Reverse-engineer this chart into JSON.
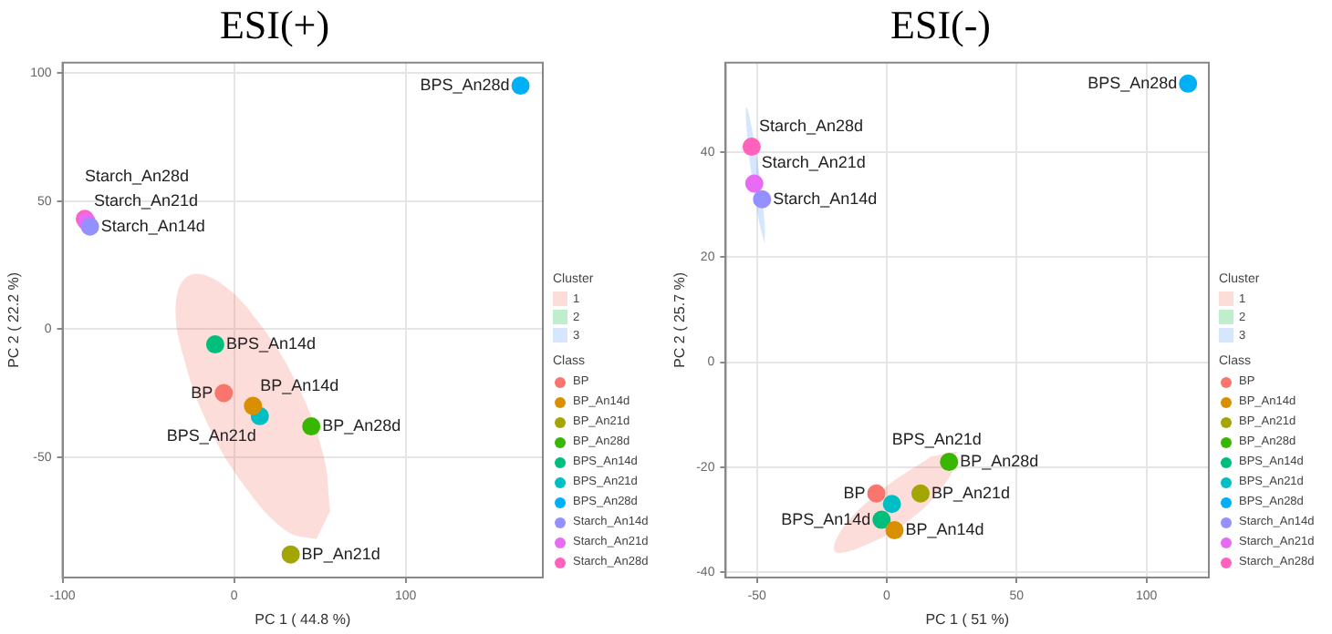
{
  "chart_data": [
    {
      "type": "scatter",
      "title": "ESI(+)",
      "xlabel": "PC 1 ( 44.8 %)",
      "ylabel": "PC 2 ( 22.2 %)",
      "legend_title": "Class",
      "annotations": [
        "Cluster"
      ],
      "xlim": [
        -100,
        180
      ],
      "ylim": [
        -97,
        104
      ],
      "xticks": [
        -100,
        0,
        100
      ],
      "yticks": [
        -50,
        0,
        50,
        100
      ],
      "grid": true,
      "legend": "right",
      "marker": "circle",
      "series": [
        {
          "name": "1",
          "type": "area",
          "marker": "none",
          "color": "#f8766d",
          "x": [
            48,
            31,
            8,
            -14,
            -29,
            -34,
            -26,
            -8,
            15,
            37,
            52,
            56
          ],
          "values": [
            -82,
            -79,
            -63,
            -39,
            -12,
            10,
            21,
            18,
            2,
            -22,
            -49,
            -71
          ]
        },
        {
          "name": "2",
          "type": "area",
          "marker": "none",
          "color": "#00ba38"
        },
        {
          "name": "3",
          "type": "area",
          "marker": "none",
          "color": "#619cff"
        },
        {
          "name": "BP",
          "color": "#f8766d",
          "x": [
            -6
          ],
          "values": [
            -25
          ]
        },
        {
          "name": "BP_An14d",
          "color": "#d89000",
          "x": [
            11
          ],
          "values": [
            -30
          ]
        },
        {
          "name": "BP_An21d",
          "color": "#a3a500",
          "x": [
            33
          ],
          "values": [
            -88
          ]
        },
        {
          "name": "BP_An28d",
          "color": "#39b600",
          "x": [
            45
          ],
          "values": [
            -38
          ]
        },
        {
          "name": "BPS_An14d",
          "color": "#00bf7d",
          "x": [
            -11
          ],
          "values": [
            -6
          ]
        },
        {
          "name": "BPS_An21d",
          "color": "#00bfc4",
          "x": [
            15
          ],
          "values": [
            -34
          ]
        },
        {
          "name": "BPS_An28d",
          "color": "#00b0f6",
          "x": [
            167
          ],
          "values": [
            95
          ]
        },
        {
          "name": "Starch_An14d",
          "color": "#9590ff",
          "x": [
            -84
          ],
          "values": [
            40
          ]
        },
        {
          "name": "Starch_An21d",
          "color": "#e76bf3",
          "x": [
            -86
          ],
          "values": [
            42
          ]
        },
        {
          "name": "Starch_An28d",
          "color": "#ff62bc",
          "x": [
            -87
          ],
          "values": [
            43
          ]
        }
      ]
    },
    {
      "type": "scatter",
      "title": "ESI(-)",
      "xlabel": "PC 1 ( 51 %)",
      "ylabel": "PC 2 ( 25.7 %)",
      "legend_title": "Class",
      "annotations": [
        "Cluster"
      ],
      "xlim": [
        -62,
        124
      ],
      "ylim": [
        -41,
        57
      ],
      "xticks": [
        -50,
        0,
        50,
        100
      ],
      "yticks": [
        -40,
        -20,
        0,
        20,
        40
      ],
      "grid": true,
      "legend": "right",
      "marker": "circle",
      "series": [
        {
          "name": "1",
          "type": "area",
          "marker": "none",
          "color": "#f8766d",
          "x": [
            27,
            24,
            9,
            -9,
            -20,
            -16,
            -1,
            17
          ],
          "values": [
            -17,
            -22,
            -30,
            -35,
            -36,
            -31,
            -24,
            -18
          ]
        },
        {
          "name": "2",
          "type": "area",
          "marker": "none",
          "color": "#00ba38"
        },
        {
          "name": "3",
          "type": "area",
          "marker": "none",
          "color": "#619cff",
          "x": [
            -47,
            -47,
            -49,
            -52,
            -54,
            -54,
            -52,
            -49
          ],
          "values": [
            22.5,
            26.4,
            35.6,
            44.7,
            48.5,
            44.6,
            35.4,
            26.3
          ]
        },
        {
          "name": "BP",
          "color": "#f8766d",
          "x": [
            -4
          ],
          "values": [
            -25
          ]
        },
        {
          "name": "BP_An14d",
          "color": "#d89000",
          "x": [
            3
          ],
          "values": [
            -32
          ]
        },
        {
          "name": "BP_An21d",
          "color": "#a3a500",
          "x": [
            13
          ],
          "values": [
            -25
          ]
        },
        {
          "name": "BP_An28d",
          "color": "#39b600",
          "x": [
            24
          ],
          "values": [
            -19
          ]
        },
        {
          "name": "BPS_An14d",
          "color": "#00bf7d",
          "x": [
            -2
          ],
          "values": [
            -30
          ]
        },
        {
          "name": "BPS_An21d",
          "color": "#00bfc4",
          "x": [
            2
          ],
          "values": [
            -27
          ]
        },
        {
          "name": "BPS_An28d",
          "color": "#00b0f6",
          "x": [
            116
          ],
          "values": [
            53
          ]
        },
        {
          "name": "Starch_An14d",
          "color": "#9590ff",
          "x": [
            -48
          ],
          "values": [
            31
          ]
        },
        {
          "name": "Starch_An21d",
          "color": "#e76bf3",
          "x": [
            -51
          ],
          "values": [
            34
          ]
        },
        {
          "name": "Starch_An28d",
          "color": "#ff62bc",
          "x": [
            -52
          ],
          "values": [
            41
          ]
        }
      ]
    }
  ]
}
